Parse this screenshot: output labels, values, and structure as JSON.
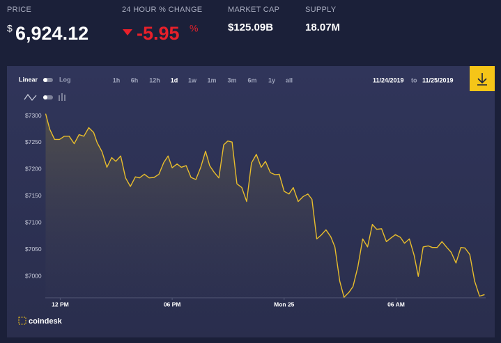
{
  "header": {
    "price_label": "PRICE",
    "currency": "$",
    "price": "6,924.12",
    "change_label": "24 HOUR % CHANGE",
    "change": "-5.95",
    "change_unit": "%",
    "cap_label": "MARKET CAP",
    "cap": "$125.09B",
    "supply_label": "SUPPLY",
    "supply": "18.07M"
  },
  "controls": {
    "linear": "Linear",
    "log": "Log",
    "ranges": [
      "1h",
      "6h",
      "12h",
      "1d",
      "1w",
      "1m",
      "3m",
      "6m",
      "1y",
      "all"
    ],
    "from": "11/24/2019",
    "to_word": "to",
    "to": "11/25/2019"
  },
  "footer": {
    "brand": "coindesk"
  },
  "chart_data": {
    "type": "area",
    "color": "#e8bd2c",
    "x": [
      11.22,
      11.44,
      11.7,
      11.96,
      12.22,
      12.48,
      12.75,
      13.01,
      13.27,
      13.53,
      13.79,
      13.98,
      14.24,
      14.5,
      14.76,
      14.98,
      15.24,
      15.5,
      15.76,
      16.03,
      16.25,
      16.51,
      16.77,
      17.03,
      17.29,
      17.55,
      17.78,
      18.0,
      18.26,
      18.49,
      18.75,
      19.01,
      19.27,
      19.53,
      19.79,
      20.01,
      20.24,
      20.5,
      20.76,
      20.98,
      21.21,
      21.47,
      21.73,
      21.99,
      22.25,
      22.51,
      22.77,
      23.0,
      23.26,
      23.52,
      23.74,
      24.0,
      24.26,
      24.49,
      24.75,
      25.01,
      25.27,
      25.49,
      25.75,
      25.98,
      26.24,
      26.5,
      26.72,
      26.98,
      27.21,
      27.47,
      27.69,
      27.95,
      28.21,
      28.47,
      28.73,
      28.96,
      29.22,
      29.48,
      29.7,
      29.96,
      30.23,
      30.45,
      30.71,
      30.97,
      31.19,
      31.45,
      31.72,
      31.94,
      32.2,
      32.46,
      32.72,
      32.95,
      33.21,
      33.47,
      33.69,
      33.95,
      34.21,
      34.47,
      34.74
    ],
    "values": [
      7304,
      7275,
      7256,
      7256,
      7262,
      7262,
      7248,
      7265,
      7262,
      7278,
      7269,
      7250,
      7233,
      7204,
      7222,
      7215,
      7225,
      7184,
      7168,
      7186,
      7184,
      7191,
      7184,
      7185,
      7191,
      7213,
      7225,
      7203,
      7210,
      7204,
      7207,
      7185,
      7181,
      7204,
      7234,
      7207,
      7195,
      7184,
      7246,
      7253,
      7251,
      7173,
      7166,
      7140,
      7212,
      7228,
      7204,
      7215,
      7194,
      7190,
      7191,
      7159,
      7154,
      7166,
      7140,
      7149,
      7154,
      7144,
      7070,
      7077,
      7087,
      7074,
      7055,
      6991,
      6961,
      6970,
      6981,
      7018,
      7070,
      7055,
      7097,
      7088,
      7089,
      7065,
      7071,
      7078,
      7073,
      7062,
      7070,
      7039,
      7000,
      7055,
      7057,
      7054,
      7054,
      7065,
      7054,
      7045,
      7025,
      7054,
      7053,
      7041,
      6991,
      6963,
      6966
    ],
    "xlim": [
      11.2,
      34.8
    ],
    "xticks": [
      {
        "value": 12,
        "label": "12 PM"
      },
      {
        "value": 18,
        "label": "06 PM"
      },
      {
        "value": 24,
        "label": "Mon 25"
      },
      {
        "value": 30,
        "label": "06 AM"
      }
    ],
    "ylim": [
      6960,
      7315
    ],
    "yticks": [
      {
        "value": 7000,
        "label": "$7000"
      },
      {
        "value": 7050,
        "label": "$7050"
      },
      {
        "value": 7100,
        "label": "$7100"
      },
      {
        "value": 7150,
        "label": "$7150"
      },
      {
        "value": 7200,
        "label": "$7200"
      },
      {
        "value": 7250,
        "label": "$7250"
      },
      {
        "value": 7300,
        "label": "$7300"
      }
    ],
    "grid": false
  }
}
